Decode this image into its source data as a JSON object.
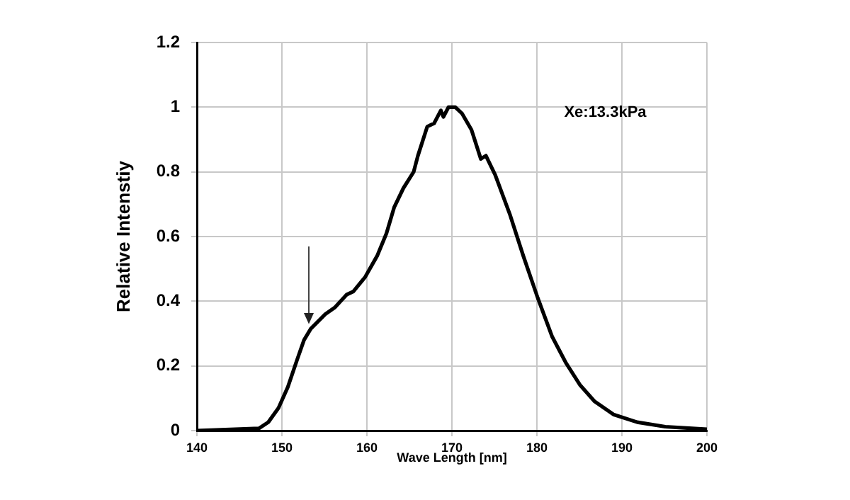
{
  "chart_data": {
    "type": "line",
    "xlabel": "Wave Length [nm]",
    "ylabel": "Relative Intenstiy",
    "annotations": [
      "Xe:13.3kPa"
    ],
    "x": [
      140,
      147.3,
      148.4,
      149.6,
      150.7,
      151.8,
      152.6,
      153.4,
      155.1,
      156.2,
      157.6,
      158.4,
      159.8,
      161.2,
      162.3,
      163.2,
      164.3,
      165.5,
      166,
      167.1,
      167.9,
      168.7,
      169,
      169.6,
      170.4,
      171.2,
      172.3,
      173.4,
      174,
      175.1,
      176.8,
      178.4,
      180.1,
      181.8,
      183.4,
      185.1,
      186.8,
      189,
      191.8,
      195.1,
      200
    ],
    "values": [
      0,
      0.007,
      0.026,
      0.07,
      0.135,
      0.22,
      0.28,
      0.315,
      0.36,
      0.38,
      0.42,
      0.43,
      0.475,
      0.54,
      0.61,
      0.69,
      0.75,
      0.8,
      0.85,
      0.94,
      0.95,
      0.99,
      0.97,
      1,
      1,
      0.98,
      0.93,
      0.84,
      0.85,
      0.79,
      0.67,
      0.54,
      0.41,
      0.29,
      0.21,
      0.14,
      0.09,
      0.05,
      0.026,
      0.012,
      0.004
    ],
    "color": "#000000",
    "marker": "none",
    "line_style": "solid",
    "xlim": [
      140,
      200
    ],
    "ylim": [
      0,
      1.2
    ],
    "xticks": [
      140,
      150,
      160,
      170,
      180,
      190,
      200
    ],
    "yticks": [
      0,
      0.2,
      0.4,
      0.6,
      0.8,
      1,
      1.2
    ],
    "grid": true
  }
}
